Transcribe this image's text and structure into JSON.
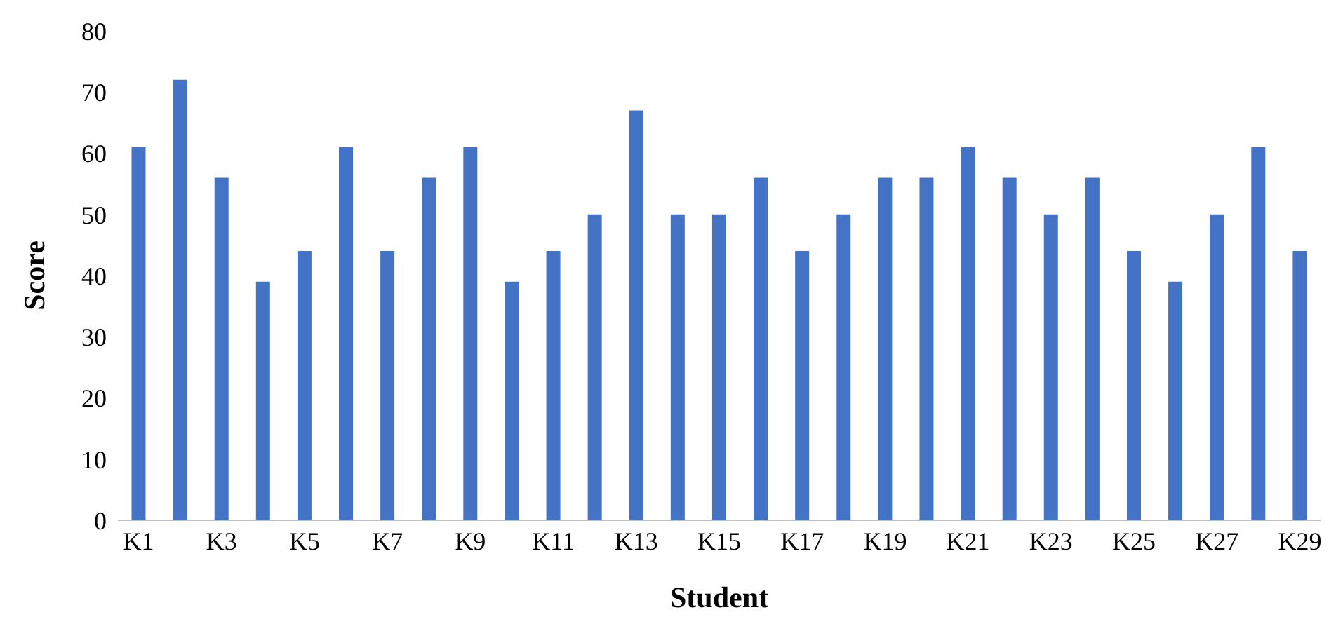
{
  "chart_data": {
    "type": "bar",
    "xlabel": "Student",
    "ylabel": "Score",
    "categories": [
      "K1",
      null,
      "K3",
      null,
      "K5",
      null,
      "K7",
      null,
      "K9",
      null,
      "K11",
      null,
      "K13",
      null,
      "K15",
      null,
      "K17",
      null,
      "K19",
      null,
      "K21",
      null,
      "K23",
      null,
      "K25",
      null,
      "K27",
      null,
      "K29"
    ],
    "values": [
      61,
      72,
      56,
      39,
      44,
      61,
      44,
      56,
      61,
      39,
      44,
      50,
      67,
      50,
      50,
      56,
      44,
      50,
      56,
      56,
      61,
      56,
      50,
      56,
      44,
      39,
      50,
      61,
      44
    ],
    "color": "#4472c4",
    "ylim": [
      0,
      80
    ],
    "yticks": [
      0,
      10,
      20,
      30,
      40,
      50,
      60,
      70,
      80
    ],
    "grid": false,
    "legend": false
  }
}
